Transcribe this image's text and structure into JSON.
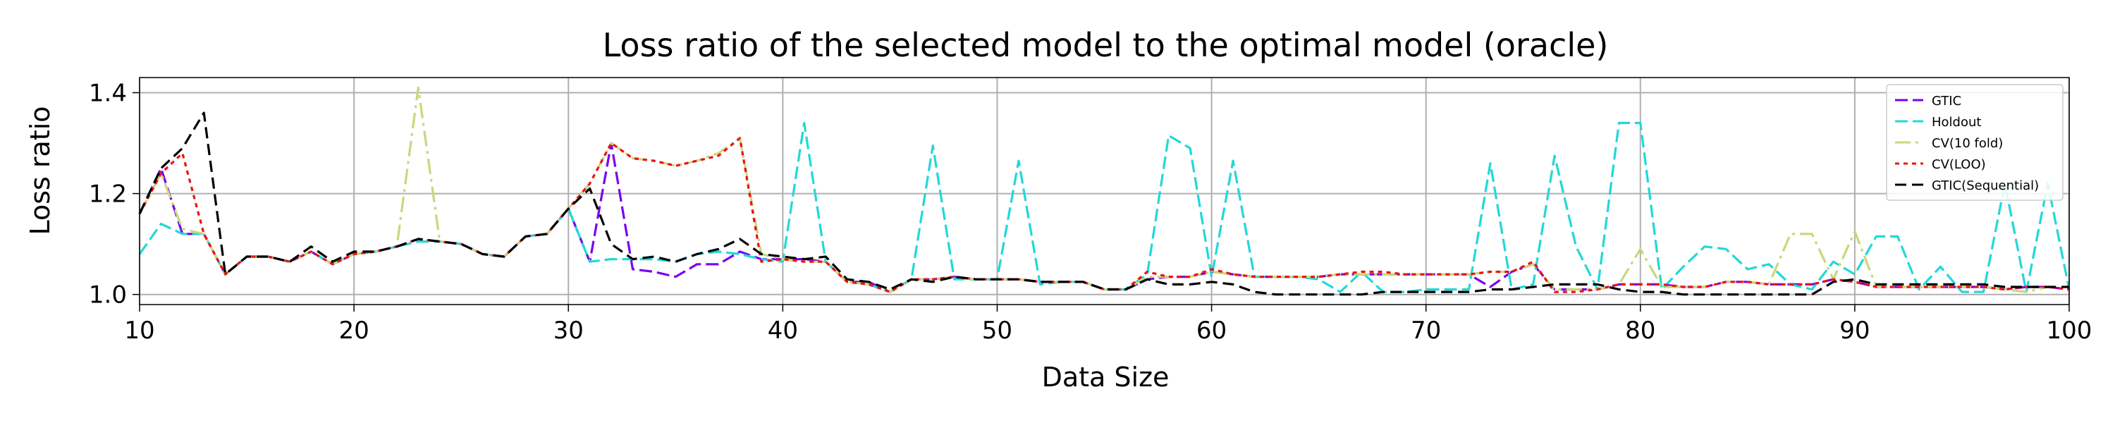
{
  "chart_data": {
    "type": "line",
    "title": "Loss ratio of the selected model to the optimal model (oracle)",
    "xlabel": "Data Size",
    "ylabel": "Loss ratio",
    "xlim": [
      10,
      100
    ],
    "ylim": [
      0.98,
      1.43
    ],
    "xticks": [
      10,
      20,
      30,
      40,
      50,
      60,
      70,
      80,
      90,
      100
    ],
    "yticks": [
      1.0,
      1.2,
      1.4
    ],
    "xtick_labels": [
      "10",
      "20",
      "30",
      "40",
      "50",
      "60",
      "70",
      "80",
      "90",
      "100"
    ],
    "ytick_labels": [
      "1.0",
      "1.2",
      "1.4"
    ],
    "grid": true,
    "legend_position": "top-right",
    "x": [
      10,
      11,
      12,
      13,
      14,
      15,
      16,
      17,
      18,
      19,
      20,
      21,
      22,
      23,
      24,
      25,
      26,
      27,
      28,
      29,
      30,
      31,
      32,
      33,
      34,
      35,
      36,
      37,
      38,
      39,
      40,
      41,
      42,
      43,
      44,
      45,
      46,
      47,
      48,
      49,
      50,
      51,
      52,
      53,
      54,
      55,
      56,
      57,
      58,
      59,
      60,
      61,
      62,
      63,
      64,
      65,
      66,
      67,
      68,
      69,
      70,
      71,
      72,
      73,
      74,
      75,
      76,
      77,
      78,
      79,
      80,
      81,
      82,
      83,
      84,
      85,
      86,
      87,
      88,
      89,
      90,
      91,
      92,
      93,
      94,
      95,
      96,
      97,
      98,
      99,
      100
    ],
    "series": [
      {
        "name": "GTIC",
        "color": "#7a00ee",
        "dash": "18,7",
        "values": [
          1.16,
          1.25,
          1.12,
          1.12,
          1.04,
          1.075,
          1.075,
          1.065,
          1.085,
          1.06,
          1.08,
          1.085,
          1.095,
          1.11,
          1.105,
          1.1,
          1.08,
          1.075,
          1.115,
          1.12,
          1.17,
          1.065,
          1.3,
          1.05,
          1.045,
          1.035,
          1.06,
          1.06,
          1.085,
          1.07,
          1.07,
          1.07,
          1.065,
          1.025,
          1.025,
          1.005,
          1.03,
          1.03,
          1.035,
          1.03,
          1.03,
          1.03,
          1.025,
          1.025,
          1.025,
          1.01,
          1.01,
          1.03,
          1.035,
          1.035,
          1.045,
          1.04,
          1.035,
          1.035,
          1.035,
          1.035,
          1.04,
          1.04,
          1.04,
          1.04,
          1.04,
          1.04,
          1.04,
          1.015,
          1.045,
          1.06,
          1.01,
          1.01,
          1.01,
          1.02,
          1.02,
          1.02,
          1.015,
          1.015,
          1.025,
          1.025,
          1.02,
          1.02,
          1.02,
          1.03,
          1.025,
          1.015,
          1.015,
          1.015,
          1.015,
          1.015,
          1.015,
          1.01,
          1.015,
          1.015,
          1.01
        ]
      },
      {
        "name": "Holdout",
        "color": "#22d8d8",
        "dash": "18,7",
        "values": [
          1.08,
          1.14,
          1.12,
          1.12,
          1.04,
          1.075,
          1.075,
          1.065,
          1.085,
          1.06,
          1.08,
          1.085,
          1.095,
          1.105,
          1.105,
          1.1,
          1.08,
          1.075,
          1.115,
          1.12,
          1.17,
          1.065,
          1.07,
          1.07,
          1.07,
          1.065,
          1.08,
          1.085,
          1.08,
          1.07,
          1.065,
          1.34,
          1.065,
          1.025,
          1.02,
          1.005,
          1.03,
          1.295,
          1.03,
          1.03,
          1.03,
          1.265,
          1.02,
          1.025,
          1.025,
          1.01,
          1.01,
          1.04,
          1.315,
          1.29,
          1.035,
          1.265,
          1.035,
          1.035,
          1.035,
          1.03,
          1.005,
          1.045,
          1.005,
          1.005,
          1.01,
          1.01,
          1.01,
          1.26,
          1.01,
          1.02,
          1.275,
          1.095,
          1.01,
          1.34,
          1.34,
          1.01,
          1.055,
          1.095,
          1.09,
          1.05,
          1.06,
          1.02,
          1.01,
          1.065,
          1.04,
          1.115,
          1.115,
          1.01,
          1.055,
          1.005,
          1.005,
          1.22,
          1.005,
          1.22,
          1.01
        ]
      },
      {
        "name": "CV(10 fold)",
        "color": "#c8d87a",
        "dash": "22,7,4,7",
        "values": [
          1.16,
          1.24,
          1.13,
          1.12,
          1.04,
          1.075,
          1.075,
          1.065,
          1.085,
          1.06,
          1.08,
          1.085,
          1.095,
          1.41,
          1.105,
          1.1,
          1.08,
          1.075,
          1.115,
          1.12,
          1.17,
          1.22,
          1.3,
          1.27,
          1.265,
          1.255,
          1.265,
          1.28,
          1.31,
          1.08,
          1.07,
          1.065,
          1.065,
          1.025,
          1.02,
          1.005,
          1.03,
          1.03,
          1.035,
          1.03,
          1.03,
          1.03,
          1.025,
          1.025,
          1.025,
          1.01,
          1.01,
          1.035,
          1.035,
          1.035,
          1.045,
          1.04,
          1.035,
          1.035,
          1.035,
          1.035,
          1.04,
          1.04,
          1.04,
          1.04,
          1.04,
          1.04,
          1.04,
          1.045,
          1.045,
          1.06,
          1.01,
          1.01,
          1.01,
          1.02,
          1.09,
          1.015,
          1.015,
          1.015,
          1.025,
          1.025,
          1.02,
          1.12,
          1.12,
          1.03,
          1.125,
          1.015,
          1.015,
          1.015,
          1.015,
          1.015,
          1.015,
          1.01,
          1.005,
          1.015,
          1.01
        ]
      },
      {
        "name": "CV(LOO)",
        "color": "#ee1111",
        "dash": "6,6",
        "values": [
          1.16,
          1.24,
          1.28,
          1.12,
          1.04,
          1.075,
          1.075,
          1.065,
          1.085,
          1.06,
          1.08,
          1.085,
          1.095,
          1.11,
          1.105,
          1.1,
          1.08,
          1.075,
          1.115,
          1.12,
          1.17,
          1.22,
          1.3,
          1.27,
          1.265,
          1.255,
          1.265,
          1.275,
          1.31,
          1.065,
          1.07,
          1.065,
          1.065,
          1.025,
          1.02,
          1.005,
          1.03,
          1.03,
          1.035,
          1.03,
          1.03,
          1.03,
          1.025,
          1.025,
          1.025,
          1.01,
          1.01,
          1.045,
          1.035,
          1.035,
          1.05,
          1.04,
          1.035,
          1.035,
          1.035,
          1.035,
          1.04,
          1.045,
          1.045,
          1.04,
          1.04,
          1.04,
          1.04,
          1.045,
          1.045,
          1.065,
          1.005,
          1.005,
          1.01,
          1.02,
          1.02,
          1.02,
          1.015,
          1.015,
          1.025,
          1.025,
          1.02,
          1.02,
          1.02,
          1.03,
          1.025,
          1.015,
          1.015,
          1.015,
          1.015,
          1.015,
          1.015,
          1.01,
          1.015,
          1.015,
          1.01
        ]
      },
      {
        "name": "GTIC(Sequential)",
        "color": "#000000",
        "dash": "16,8",
        "values": [
          1.16,
          1.25,
          1.29,
          1.36,
          1.04,
          1.075,
          1.075,
          1.065,
          1.095,
          1.065,
          1.085,
          1.085,
          1.095,
          1.11,
          1.105,
          1.1,
          1.08,
          1.075,
          1.115,
          1.12,
          1.17,
          1.21,
          1.1,
          1.07,
          1.075,
          1.065,
          1.08,
          1.09,
          1.11,
          1.08,
          1.075,
          1.07,
          1.075,
          1.03,
          1.025,
          1.01,
          1.03,
          1.025,
          1.035,
          1.03,
          1.03,
          1.03,
          1.025,
          1.025,
          1.025,
          1.01,
          1.01,
          1.03,
          1.02,
          1.02,
          1.025,
          1.02,
          1.005,
          1.0,
          1.0,
          1.0,
          1.0,
          1.0,
          1.005,
          1.005,
          1.005,
          1.005,
          1.005,
          1.01,
          1.01,
          1.015,
          1.02,
          1.02,
          1.02,
          1.01,
          1.005,
          1.005,
          1.0,
          1.0,
          1.0,
          1.0,
          1.0,
          1.0,
          1.0,
          1.025,
          1.03,
          1.02,
          1.02,
          1.02,
          1.02,
          1.02,
          1.02,
          1.015,
          1.015,
          1.015,
          1.015
        ]
      }
    ]
  }
}
